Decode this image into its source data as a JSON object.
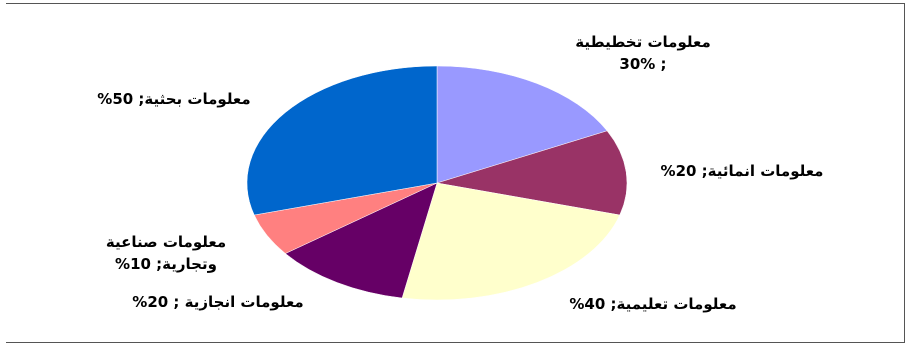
{
  "chart_data": {
    "type": "pie",
    "title": "",
    "slices": [
      {
        "label_lines": [
          "معلومات تخطيطية",
          "; 30%"
        ],
        "value": 30,
        "color": "#9999ff"
      },
      {
        "label_lines": [
          "معلومات انمائية; 20%"
        ],
        "value": 20,
        "color": "#993366"
      },
      {
        "label_lines": [
          "معلومات تعليمية; 40%"
        ],
        "value": 40,
        "color": "#ffffcc"
      },
      {
        "label_lines": [
          "معلومات انجازية ; 20%"
        ],
        "value": 20,
        "color": "#660066"
      },
      {
        "label_lines": [
          "معلومات صناعية",
          "وتجارية; 10%"
        ],
        "value": 10,
        "color": "#ff8080"
      },
      {
        "label_lines": [
          "معلومات بحثية; 50%"
        ],
        "value": 50,
        "color": "#0066cc"
      }
    ]
  }
}
